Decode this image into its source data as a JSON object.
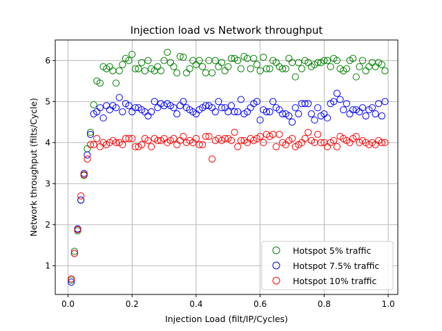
{
  "chart_data": {
    "type": "scatter",
    "title": "Injection load vs Network throughput",
    "xlabel": "Injection Load (filt/IP/Cycles)",
    "ylabel": "Network throughput (filts/Cycle)",
    "xlim": [
      -0.04,
      1.03
    ],
    "ylim": [
      0.3,
      6.5
    ],
    "xticks": [
      0.0,
      0.2,
      0.4,
      0.6,
      0.8,
      1.0
    ],
    "yticks": [
      1,
      2,
      3,
      4,
      5,
      6
    ],
    "xtick_labels": [
      "0.0",
      "0.2",
      "0.4",
      "0.6",
      "0.8",
      "1.0"
    ],
    "ytick_labels": [
      "1",
      "2",
      "3",
      "4",
      "5",
      "6"
    ],
    "grid": true,
    "legend_position": "lower-right",
    "marker": "hollow-circle",
    "series": [
      {
        "name": "Hotspot 5% traffic",
        "color": "#008000",
        "x": [
          0.01,
          0.02,
          0.03,
          0.04,
          0.05,
          0.06,
          0.07,
          0.08,
          0.09,
          0.1,
          0.11,
          0.12,
          0.13,
          0.14,
          0.15,
          0.16,
          0.17,
          0.18,
          0.19,
          0.2,
          0.21,
          0.22,
          0.23,
          0.24,
          0.25,
          0.26,
          0.27,
          0.28,
          0.29,
          0.3,
          0.31,
          0.32,
          0.33,
          0.34,
          0.35,
          0.36,
          0.37,
          0.38,
          0.39,
          0.4,
          0.41,
          0.42,
          0.43,
          0.44,
          0.45,
          0.46,
          0.47,
          0.48,
          0.49,
          0.5,
          0.51,
          0.52,
          0.53,
          0.54,
          0.55,
          0.56,
          0.57,
          0.58,
          0.59,
          0.6,
          0.61,
          0.62,
          0.63,
          0.64,
          0.65,
          0.66,
          0.67,
          0.68,
          0.69,
          0.7,
          0.71,
          0.72,
          0.73,
          0.74,
          0.75,
          0.76,
          0.77,
          0.78,
          0.79,
          0.8,
          0.81,
          0.82,
          0.83,
          0.84,
          0.85,
          0.86,
          0.87,
          0.88,
          0.89,
          0.9,
          0.91,
          0.92,
          0.93,
          0.94,
          0.95,
          0.96,
          0.97,
          0.98,
          0.99
        ],
        "values": [
          0.65,
          1.35,
          1.85,
          2.6,
          3.2,
          3.85,
          4.25,
          4.92,
          5.5,
          5.45,
          5.85,
          5.8,
          5.85,
          5.75,
          5.45,
          5.75,
          5.9,
          6.05,
          6.0,
          6.15,
          5.8,
          5.8,
          5.95,
          5.75,
          6.0,
          5.8,
          5.75,
          5.85,
          5.75,
          6.0,
          6.2,
          5.95,
          5.85,
          5.7,
          6.1,
          6.08,
          5.7,
          5.8,
          6.0,
          5.9,
          6.0,
          5.85,
          5.7,
          6.0,
          5.7,
          6.0,
          5.85,
          5.95,
          5.75,
          5.85,
          6.05,
          6.05,
          6.0,
          5.8,
          6.1,
          6.05,
          5.8,
          6.05,
          5.9,
          5.75,
          6.08,
          5.8,
          5.8,
          6.0,
          5.95,
          5.85,
          5.8,
          5.8,
          6.05,
          5.95,
          5.6,
          5.95,
          5.8,
          6.0,
          5.95,
          5.85,
          5.9,
          5.95,
          5.95,
          6.0,
          6.0,
          5.85,
          6.05,
          6.0,
          5.8,
          5.75,
          5.8,
          6.0,
          6.05,
          5.6,
          5.85,
          6.0,
          5.75,
          5.85,
          5.95,
          5.85,
          5.95,
          5.9,
          5.75
        ]
      },
      {
        "name": "Hotspot 7.5% traffic",
        "color": "#0000ff",
        "x": [
          0.01,
          0.02,
          0.03,
          0.04,
          0.05,
          0.06,
          0.07,
          0.08,
          0.09,
          0.1,
          0.11,
          0.12,
          0.13,
          0.14,
          0.15,
          0.16,
          0.17,
          0.18,
          0.19,
          0.2,
          0.21,
          0.22,
          0.23,
          0.24,
          0.25,
          0.26,
          0.27,
          0.28,
          0.29,
          0.3,
          0.31,
          0.32,
          0.33,
          0.34,
          0.35,
          0.36,
          0.37,
          0.38,
          0.39,
          0.4,
          0.41,
          0.42,
          0.43,
          0.44,
          0.45,
          0.46,
          0.47,
          0.48,
          0.49,
          0.5,
          0.51,
          0.52,
          0.53,
          0.54,
          0.55,
          0.56,
          0.57,
          0.58,
          0.59,
          0.6,
          0.61,
          0.62,
          0.63,
          0.64,
          0.65,
          0.66,
          0.67,
          0.68,
          0.69,
          0.7,
          0.71,
          0.72,
          0.73,
          0.74,
          0.75,
          0.76,
          0.77,
          0.78,
          0.79,
          0.8,
          0.81,
          0.82,
          0.83,
          0.84,
          0.85,
          0.86,
          0.87,
          0.88,
          0.89,
          0.9,
          0.91,
          0.92,
          0.93,
          0.94,
          0.95,
          0.96,
          0.97,
          0.98,
          0.99
        ],
        "values": [
          0.6,
          1.3,
          1.9,
          2.6,
          3.25,
          3.7,
          4.2,
          4.7,
          4.75,
          4.85,
          4.6,
          4.9,
          4.8,
          4.9,
          4.85,
          5.1,
          4.75,
          4.95,
          4.9,
          4.75,
          4.85,
          4.85,
          4.8,
          4.75,
          4.65,
          4.75,
          5.0,
          4.85,
          4.95,
          4.9,
          4.95,
          4.9,
          4.85,
          4.7,
          4.9,
          5.0,
          4.85,
          4.8,
          4.75,
          4.7,
          4.8,
          4.85,
          4.9,
          4.9,
          4.85,
          4.75,
          5.0,
          4.85,
          4.85,
          4.75,
          4.9,
          4.75,
          4.75,
          5.05,
          4.7,
          4.75,
          4.85,
          4.95,
          5.0,
          4.55,
          4.8,
          4.75,
          4.75,
          5.0,
          4.85,
          4.8,
          4.7,
          4.7,
          4.65,
          4.5,
          4.85,
          4.7,
          4.95,
          4.95,
          4.95,
          4.7,
          4.55,
          4.85,
          4.65,
          4.7,
          4.6,
          4.95,
          5.0,
          5.2,
          5.05,
          4.8,
          4.95,
          4.7,
          4.8,
          4.8,
          4.75,
          4.85,
          4.65,
          4.8,
          4.85,
          4.7,
          4.95,
          4.65,
          5.0
        ]
      },
      {
        "name": "Hotspot 10% traffic",
        "color": "#ff0000",
        "x": [
          0.01,
          0.02,
          0.03,
          0.04,
          0.05,
          0.06,
          0.07,
          0.08,
          0.09,
          0.1,
          0.11,
          0.12,
          0.13,
          0.14,
          0.15,
          0.16,
          0.17,
          0.18,
          0.19,
          0.2,
          0.21,
          0.22,
          0.23,
          0.24,
          0.25,
          0.26,
          0.27,
          0.28,
          0.29,
          0.3,
          0.31,
          0.32,
          0.33,
          0.34,
          0.35,
          0.36,
          0.37,
          0.38,
          0.39,
          0.4,
          0.41,
          0.42,
          0.43,
          0.44,
          0.45,
          0.46,
          0.47,
          0.48,
          0.49,
          0.5,
          0.51,
          0.52,
          0.53,
          0.54,
          0.55,
          0.56,
          0.57,
          0.58,
          0.59,
          0.6,
          0.61,
          0.62,
          0.63,
          0.64,
          0.65,
          0.66,
          0.67,
          0.68,
          0.69,
          0.7,
          0.71,
          0.72,
          0.73,
          0.74,
          0.75,
          0.76,
          0.77,
          0.78,
          0.79,
          0.8,
          0.81,
          0.82,
          0.83,
          0.84,
          0.85,
          0.86,
          0.87,
          0.88,
          0.89,
          0.9,
          0.91,
          0.92,
          0.93,
          0.94,
          0.95,
          0.96,
          0.97,
          0.98,
          0.99
        ],
        "values": [
          0.68,
          1.3,
          1.88,
          2.7,
          3.22,
          3.6,
          3.95,
          3.95,
          4.1,
          3.9,
          4.0,
          3.95,
          4.0,
          4.05,
          4.0,
          4.0,
          3.95,
          4.1,
          4.1,
          4.1,
          3.9,
          3.9,
          3.95,
          4.1,
          4.05,
          3.9,
          4.1,
          4.05,
          4.05,
          4.1,
          4.0,
          4.05,
          4.1,
          3.95,
          4.05,
          4.15,
          4.0,
          4.05,
          4.0,
          4.1,
          3.95,
          3.95,
          4.15,
          4.15,
          3.6,
          4.05,
          4.1,
          4.05,
          4.1,
          4.1,
          4.05,
          4.25,
          3.9,
          4.05,
          4.05,
          4.0,
          4.1,
          4.05,
          4.1,
          4.15,
          4.0,
          4.2,
          4.15,
          4.2,
          3.9,
          4.2,
          4.0,
          3.95,
          4.05,
          4.1,
          3.9,
          3.95,
          4.0,
          4.1,
          4.25,
          4.05,
          4.0,
          4.2,
          4.0,
          4.0,
          3.9,
          4.0,
          4.05,
          3.9,
          4.15,
          4.1,
          4.05,
          4.0,
          4.1,
          4.15,
          4.0,
          4.05,
          4.0,
          3.95,
          4.0,
          3.95,
          4.05,
          4.0,
          4.0
        ]
      }
    ]
  }
}
